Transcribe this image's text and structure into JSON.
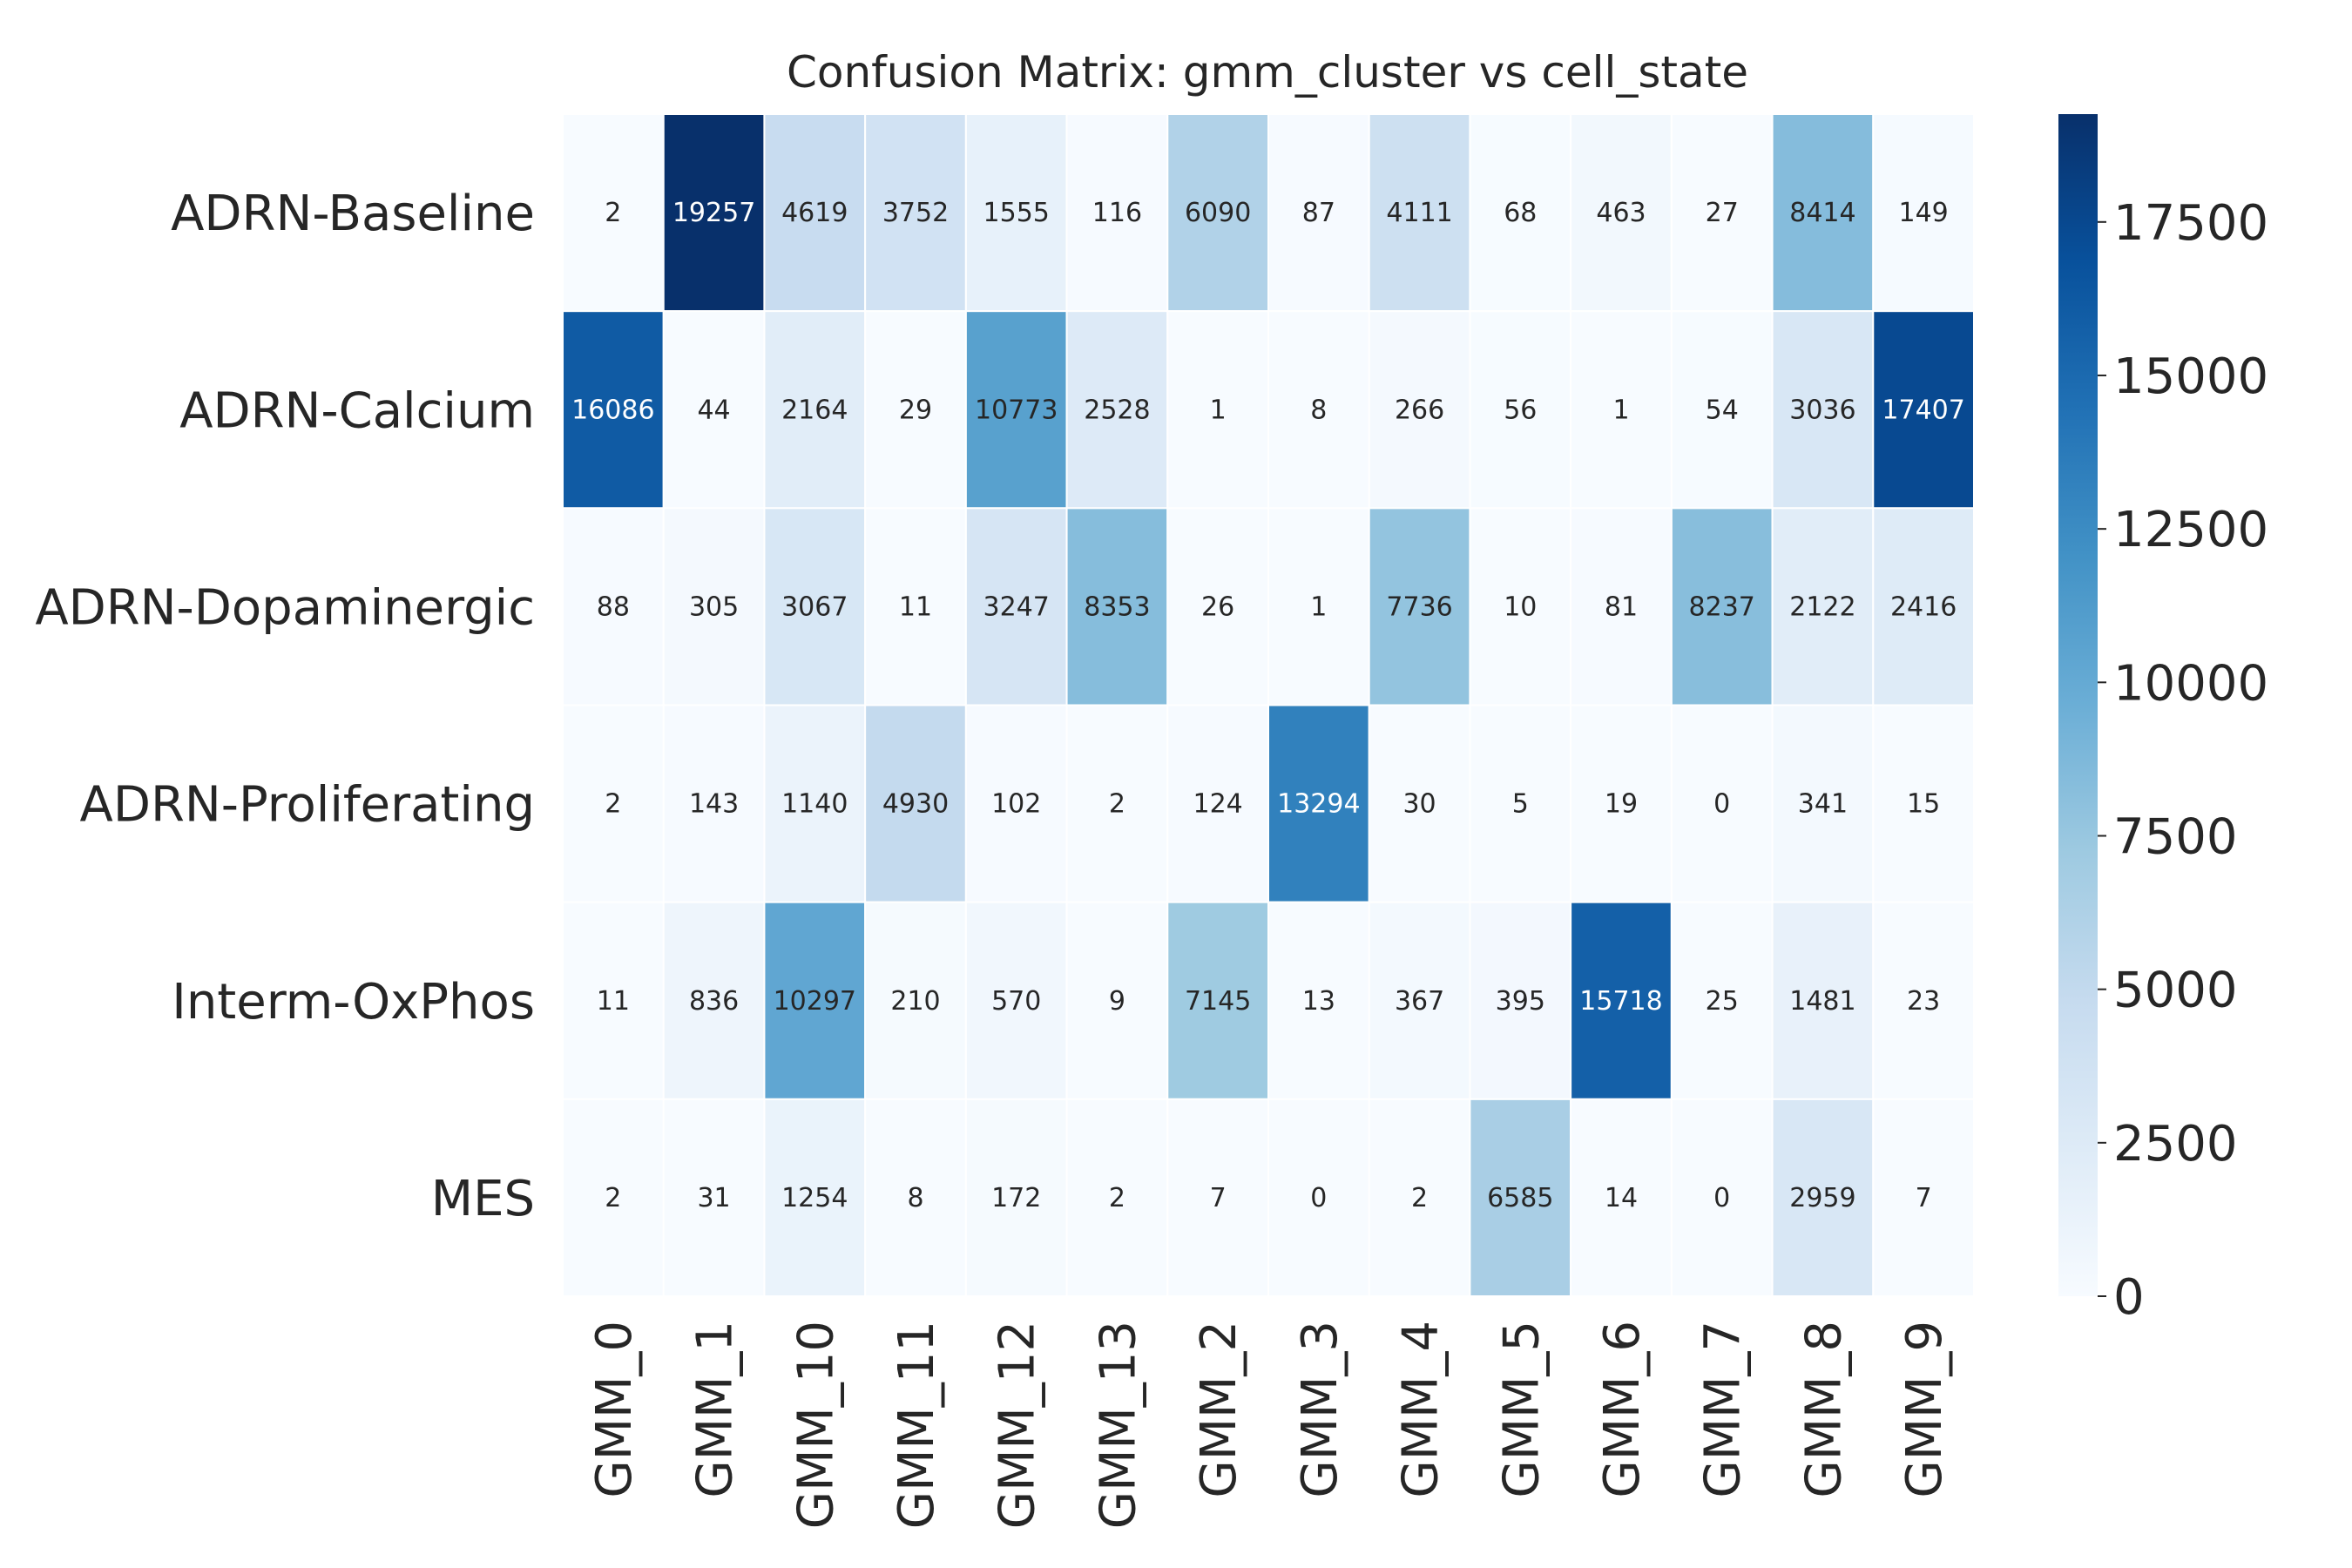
{
  "chart_data": {
    "type": "heatmap",
    "title": "Confusion Matrix: gmm_cluster vs cell_state",
    "xlabel": "",
    "ylabel": "",
    "rows": [
      "ADRN-Baseline",
      "ADRN-Calcium",
      "ADRN-Dopaminergic",
      "ADRN-Proliferating",
      "Interm-OxPhos",
      "MES"
    ],
    "columns": [
      "GMM_0",
      "GMM_1",
      "GMM_10",
      "GMM_11",
      "GMM_12",
      "GMM_13",
      "GMM_2",
      "GMM_3",
      "GMM_4",
      "GMM_5",
      "GMM_6",
      "GMM_7",
      "GMM_8",
      "GMM_9"
    ],
    "values": [
      [
        2,
        19257,
        4619,
        3752,
        1555,
        116,
        6090,
        87,
        4111,
        68,
        463,
        27,
        8414,
        149
      ],
      [
        16086,
        44,
        2164,
        29,
        10773,
        2528,
        1,
        8,
        266,
        56,
        1,
        54,
        3036,
        17407
      ],
      [
        88,
        305,
        3067,
        11,
        3247,
        8353,
        26,
        1,
        7736,
        10,
        81,
        8237,
        2122,
        2416
      ],
      [
        2,
        143,
        1140,
        4930,
        102,
        2,
        124,
        13294,
        30,
        5,
        19,
        0,
        341,
        15
      ],
      [
        11,
        836,
        10297,
        210,
        570,
        9,
        7145,
        13,
        367,
        395,
        15718,
        25,
        1481,
        23
      ],
      [
        2,
        31,
        1254,
        8,
        172,
        2,
        7,
        0,
        2,
        6585,
        14,
        0,
        2959,
        7
      ]
    ],
    "colorbar": {
      "min": 0,
      "max": 19257,
      "ticks": [
        0,
        2500,
        5000,
        7500,
        10000,
        12500,
        15000,
        17500
      ],
      "colormap": "Blues",
      "low_color": "#f7fbff",
      "high_color": "#08306b"
    },
    "annotations": true,
    "grid": false
  }
}
